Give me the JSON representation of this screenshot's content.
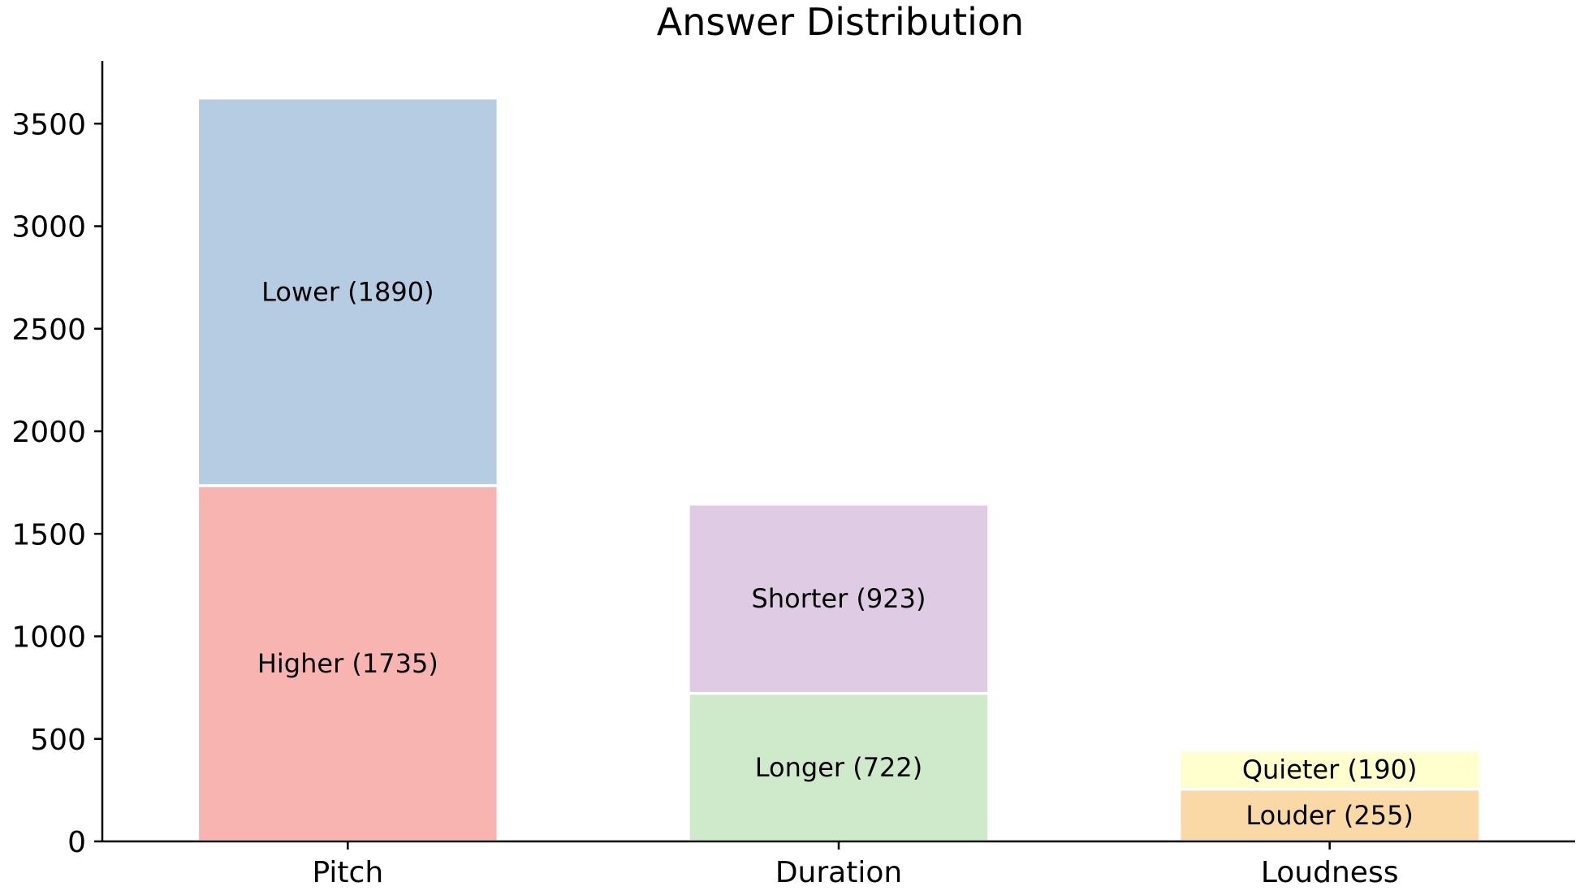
{
  "chart_data": {
    "type": "bar",
    "stacked": true,
    "title": "Answer Distribution",
    "xlabel": "",
    "ylabel": "",
    "categories": [
      "Pitch",
      "Duration",
      "Loudness"
    ],
    "stacks": [
      [
        {
          "label": "Higher (1735)",
          "value": 1735,
          "color": "#f8b4b0"
        },
        {
          "label": "Lower (1890)",
          "value": 1890,
          "color": "#b5cce3"
        }
      ],
      [
        {
          "label": "Longer (722)",
          "value": 722,
          "color": "#cfeaca"
        },
        {
          "label": "Shorter (923)",
          "value": 923,
          "color": "#dfcbe4"
        }
      ],
      [
        {
          "label": "Louder (255)",
          "value": 255,
          "color": "#fbd9a7"
        },
        {
          "label": "Quieter (190)",
          "value": 190,
          "color": "#feffcd"
        }
      ]
    ],
    "yticks": [
      0,
      500,
      1000,
      1500,
      2000,
      2500,
      3000,
      3500
    ],
    "ylim": [
      0,
      3806
    ],
    "grid": false,
    "legend": "none"
  }
}
